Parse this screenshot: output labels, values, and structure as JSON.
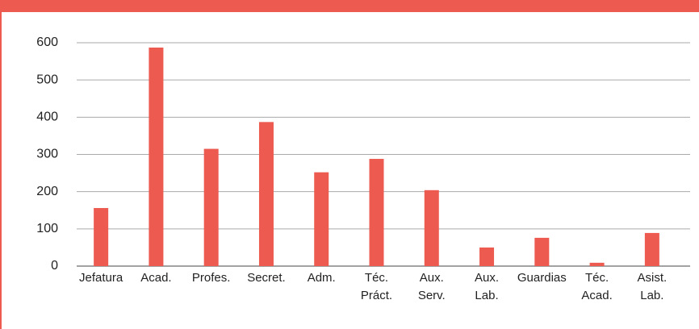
{
  "chart_data": {
    "type": "bar",
    "categories": [
      "Jefatura",
      "Acad.",
      "Profes.",
      "Secret.",
      "Adm.",
      "Téc.\nPráct.",
      "Aux.\nServ.",
      "Aux.\nLab.",
      "Guardias",
      "Téc.\nAcad.",
      "Asist.\nLab."
    ],
    "values": [
      156,
      587,
      315,
      387,
      252,
      288,
      204,
      50,
      76,
      9,
      89
    ],
    "color": "#ec5a50",
    "ylim": [
      0,
      600
    ],
    "yticks": [
      0,
      100,
      200,
      300,
      400,
      500,
      600
    ],
    "grid": true
  }
}
